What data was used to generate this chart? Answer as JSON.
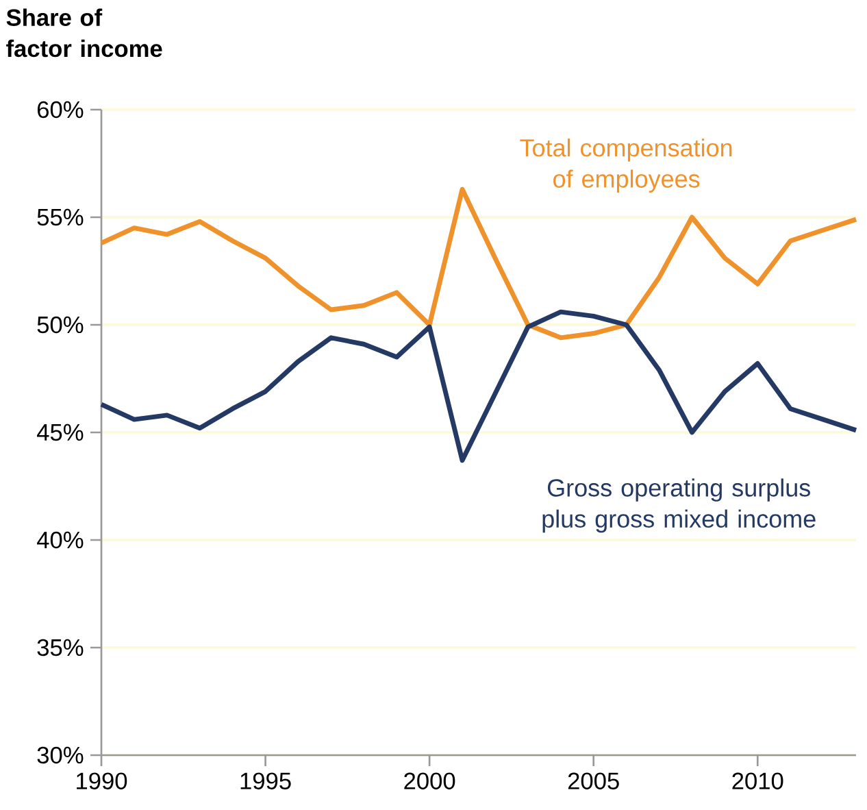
{
  "chart_data": {
    "type": "line",
    "ylabel": "Share of factor income",
    "x": [
      1990,
      1991,
      1992,
      1993,
      1994,
      1995,
      1996,
      1997,
      1998,
      1999,
      2000,
      2001,
      2002,
      2003,
      2004,
      2005,
      2006,
      2007,
      2008,
      2009,
      2010,
      2011,
      2012,
      2013
    ],
    "series": [
      {
        "name": "Total compensation of employees",
        "color": "#f0922b",
        "values": [
          53.8,
          54.5,
          54.2,
          54.8,
          53.9,
          53.1,
          51.8,
          50.7,
          50.9,
          51.5,
          50.0,
          56.3,
          53.1,
          50.0,
          49.4,
          49.6,
          50.0,
          52.2,
          55.0,
          53.1,
          51.9,
          53.9,
          54.4,
          54.9
        ]
      },
      {
        "name": "Gross operating surplus plus gross mixed income",
        "color": "#243a64",
        "values": [
          46.3,
          45.6,
          45.8,
          45.2,
          46.1,
          46.9,
          48.3,
          49.4,
          49.1,
          48.5,
          49.9,
          43.7,
          46.8,
          49.9,
          50.6,
          50.4,
          50.0,
          47.9,
          45.0,
          46.9,
          48.2,
          46.1,
          45.6,
          45.1
        ]
      }
    ],
    "xlim": [
      1990,
      2013
    ],
    "xticks": [
      1990,
      1995,
      2000,
      2005,
      2010
    ],
    "ylim": [
      30,
      60
    ],
    "yticks": [
      {
        "value": 30,
        "label": "30%"
      },
      {
        "value": 35,
        "label": "35%"
      },
      {
        "value": 40,
        "label": "40%"
      },
      {
        "value": 45,
        "label": "45%"
      },
      {
        "value": 50,
        "label": "50%"
      },
      {
        "value": 55,
        "label": "55%"
      },
      {
        "value": 60,
        "label": "60%"
      }
    ],
    "grid": "y",
    "marker": "none",
    "line_style": "solid"
  }
}
